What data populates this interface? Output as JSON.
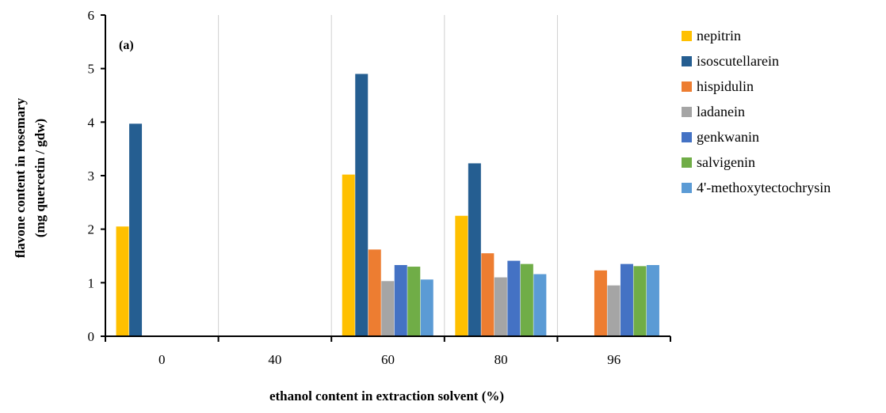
{
  "chart_data": {
    "type": "bar",
    "title": "",
    "annotation": "(a)",
    "xlabel": "ethanol content in extraction solvent (%)",
    "ylabel_line1": "flavone content in rosemary",
    "ylabel_line2": "(mg quercetin / gdw)",
    "categories": [
      "0",
      "40",
      "60",
      "80",
      "96"
    ],
    "ylim": [
      0,
      6
    ],
    "yticks": [
      0,
      1,
      2,
      3,
      4,
      5,
      6
    ],
    "grid": "vertical category separators",
    "legend_position": "right",
    "series": [
      {
        "name": "nepitrin",
        "color": "#FFC000",
        "values": [
          2.05,
          0,
          3.02,
          2.25,
          0
        ]
      },
      {
        "name": "isoscutellarein",
        "color": "#255E91",
        "values": [
          3.97,
          0,
          4.9,
          3.23,
          0
        ]
      },
      {
        "name": "hispidulin",
        "color": "#ED7D31",
        "values": [
          0,
          0,
          1.62,
          1.55,
          1.23
        ]
      },
      {
        "name": "ladanein",
        "color": "#A5A5A5",
        "values": [
          0,
          0,
          1.03,
          1.1,
          0.95
        ]
      },
      {
        "name": "genkwanin",
        "color": "#4472C4",
        "values": [
          0,
          0,
          1.33,
          1.41,
          1.35
        ]
      },
      {
        "name": "salvigenin",
        "color": "#70AD47",
        "values": [
          0,
          0,
          1.3,
          1.35,
          1.31
        ]
      },
      {
        "name": "4'-methoxytectochrysin",
        "color": "#5B9BD5",
        "values": [
          0,
          0,
          1.06,
          1.16,
          1.33
        ]
      }
    ]
  }
}
